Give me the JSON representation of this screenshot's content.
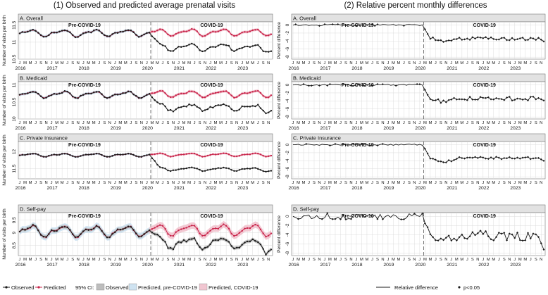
{
  "chart_data": {
    "type": "line",
    "figure_titles": {
      "left": "(1) Observed and predicted average prenatal visits",
      "right": "(2) Relative percent monthly differences"
    },
    "period_labels": {
      "pre": "Pre-COVID-19",
      "post": "COVID-19"
    },
    "month_letters": [
      "J",
      "M",
      "M",
      "J",
      "S",
      "N"
    ],
    "years": [
      "2016",
      "2017",
      "2018",
      "2019",
      "2020",
      "2021",
      "2022",
      "2023"
    ],
    "covid_start_index": 50,
    "colors": {
      "observed": "#1a1a1a",
      "predicted": "#c8244a",
      "ci_observed": "#bdbdbd",
      "ci_pre": "#cfe3f1",
      "ci_covid": "#f1c6d1",
      "relative": "#1a1a1a"
    },
    "left_panels": [
      {
        "label": "A. Overall",
        "ylabel": "Number of visits per birth",
        "ylim": [
          10.5,
          11.6
        ],
        "ticks": [
          10.5,
          11,
          11.5
        ],
        "base": 11.27,
        "season": 0.08,
        "post_offset": -0.44,
        "post_noise": 0.06,
        "obs_ci": 0.02,
        "pred_ci": 0.04
      },
      {
        "label": "B. Medicaid",
        "ylabel": "Number of visits per birth",
        "ylim": [
          10,
          11.1
        ],
        "ticks": [
          10,
          10.5,
          11
        ],
        "base": 10.72,
        "season": 0.08,
        "post_offset": -0.4,
        "post_noise": 0.06,
        "obs_ci": 0.02,
        "pred_ci": 0.04
      },
      {
        "label": "C. Private Insurance",
        "ylabel": "Number of visits per birth",
        "ylim": [
          11.2,
          12.3
        ],
        "ticks": [
          11.5,
          12
        ],
        "base": 11.9,
        "season": 0.04,
        "post_offset": -0.42,
        "post_noise": 0.03,
        "obs_ci": 0.015,
        "pred_ci": 0.03
      },
      {
        "label": "D. Self-pay",
        "ylabel": "Number of visits per birth",
        "ylim": [
          8.1,
          9.8
        ],
        "ticks": [
          8.5,
          9,
          9.5
        ],
        "base": 9.07,
        "season": 0.18,
        "post_offset": -0.52,
        "post_noise": 0.14,
        "obs_ci": 0.07,
        "pred_ci": 0.13
      }
    ],
    "right_panels": [
      {
        "label": "A. Overall",
        "ylabel": "Percent difference",
        "ylim": [
          -8.5,
          0.8
        ],
        "ticks": [
          0,
          -2,
          -4,
          -6,
          -8
        ],
        "pre_noise": 0.2,
        "post_level": -3.4,
        "post_noise": 0.4,
        "end_value": -4.1
      },
      {
        "label": "B. Medicaid",
        "ylabel": "Percent difference",
        "ylim": [
          -8.5,
          0.8
        ],
        "ticks": [
          0,
          -2,
          -4,
          -6,
          -8
        ],
        "pre_noise": 0.2,
        "post_level": -3.4,
        "post_noise": 0.5,
        "end_value": -3.9
      },
      {
        "label": "C. Private Insurance",
        "ylabel": "Percent difference",
        "ylim": [
          -8.5,
          0.8
        ],
        "ticks": [
          0,
          -2,
          -4,
          -6,
          -8
        ],
        "pre_noise": 0.2,
        "post_level": -3.3,
        "post_noise": 0.3,
        "end_value": -4.0
      },
      {
        "label": "D. Self-pay",
        "ylabel": "Percent difference",
        "ylim": [
          -8.5,
          0.8
        ],
        "ticks": [
          0,
          -2,
          -4,
          -6,
          -8
        ],
        "pre_noise": 0.7,
        "post_level": -4.2,
        "post_noise": 1.1,
        "end_value": -7.2
      }
    ],
    "legend_left": {
      "observed": "Observed",
      "predicted": "Predicted",
      "ci_title": "95% CI:",
      "ci_observed": "Observed",
      "ci_pre": "Predicted, pre-COVID-19",
      "ci_covid": "Predicted, COVID-19"
    },
    "legend_right": {
      "relative": "Relative difference",
      "significant": "p<0.05"
    }
  }
}
